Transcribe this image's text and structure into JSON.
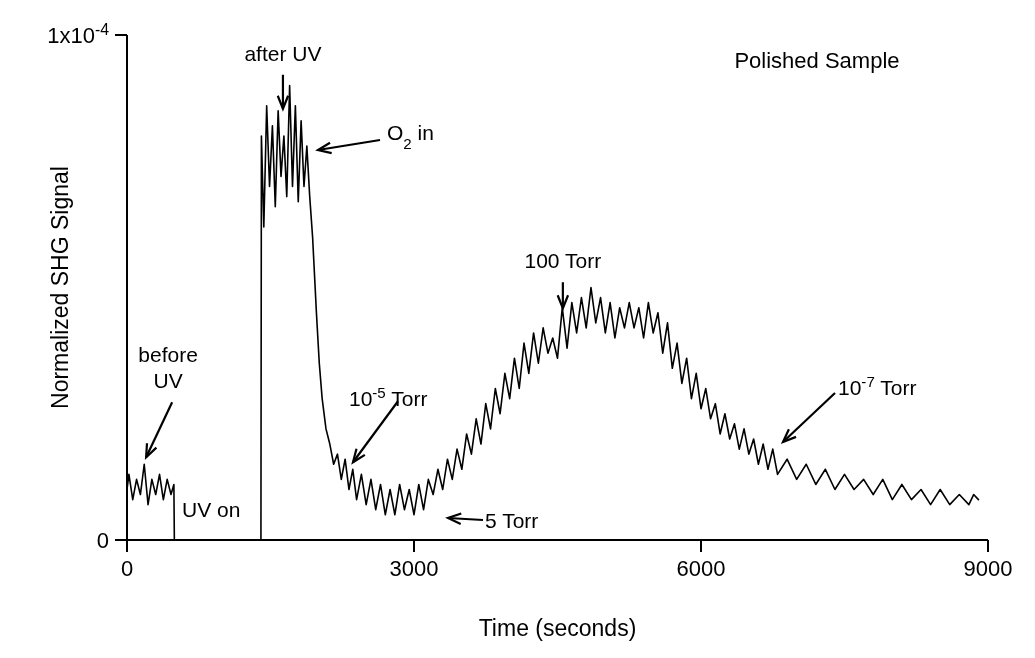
{
  "chart_data": {
    "type": "line",
    "title": "Polished Sample",
    "xlabel": "Time (seconds)",
    "ylabel": "Normalized SHG Signal",
    "xlim": [
      0,
      9000
    ],
    "xticks": [
      0,
      3000,
      6000,
      9000
    ],
    "ylim": [
      0,
      0.0001
    ],
    "yticks": [
      0,
      {
        "value": 0.0001,
        "label": "1x10$^{-4}$"
      }
    ],
    "grid": false,
    "legend": false,
    "marker": "none",
    "line_style": "solid",
    "annotations": [
      {
        "text": "before UV",
        "x": 200,
        "y": 1.6e-05
      },
      "UV on",
      {
        "text": "after UV",
        "x": 1630,
        "y": 8.5e-05
      },
      "O$_{2}$ in",
      {
        "text": "10$^{-5}$ Torr",
        "x": 2362,
        "y": 1.5e-05
      },
      "5 Torr",
      {
        "text": "100 Torr",
        "x": 4556,
        "y": 4.55e-05
      },
      "10$^{-7}$ Torr"
    ],
    "series": [
      {
        "color": "#000000",
        "x": [
          0,
          20,
          60,
          100,
          140,
          180,
          220,
          260,
          300,
          340,
          380,
          420,
          460,
          490,
          495,
          1400,
          1405,
          1430,
          1460,
          1490,
          1520,
          1550,
          1580,
          1610,
          1640,
          1670,
          1700,
          1730,
          1760,
          1790,
          1820,
          1850,
          1880,
          1910,
          1940,
          1980,
          2010,
          2040,
          2080,
          2120,
          2160,
          2200,
          2240,
          2280,
          2320,
          2360,
          2400,
          2450,
          2500,
          2550,
          2600,
          2650,
          2700,
          2750,
          2800,
          2850,
          2900,
          2950,
          3000,
          3050,
          3100,
          3150,
          3200,
          3250,
          3300,
          3350,
          3400,
          3450,
          3500,
          3550,
          3600,
          3650,
          3700,
          3750,
          3800,
          3850,
          3900,
          3950,
          4000,
          4050,
          4100,
          4150,
          4200,
          4250,
          4300,
          4350,
          4400,
          4450,
          4500,
          4550,
          4600,
          4650,
          4700,
          4750,
          4800,
          4850,
          4900,
          4950,
          5000,
          5050,
          5100,
          5150,
          5200,
          5250,
          5300,
          5350,
          5400,
          5450,
          5500,
          5550,
          5600,
          5650,
          5700,
          5750,
          5800,
          5850,
          5900,
          5950,
          6000,
          6050,
          6100,
          6150,
          6200,
          6250,
          6300,
          6350,
          6400,
          6450,
          6500,
          6550,
          6600,
          6650,
          6700,
          6750,
          6800,
          6900,
          7000,
          7100,
          7200,
          7300,
          7400,
          7500,
          7600,
          7700,
          7800,
          7900,
          8000,
          8100,
          8200,
          8300,
          8400,
          8500,
          8600,
          8700,
          8800,
          8850,
          8900
        ],
        "values": [
          1e-05,
          1.3e-05,
          8e-06,
          1.2e-05,
          9e-06,
          1.5e-05,
          7e-06,
          1.2e-05,
          9e-06,
          1.3e-05,
          8e-06,
          1.2e-05,
          9e-06,
          1.1e-05,
          0,
          0,
          8e-05,
          6.2e-05,
          8.6e-05,
          7e-05,
          8.2e-05,
          6.6e-05,
          8.5e-05,
          7.2e-05,
          8e-05,
          6.8e-05,
          9e-05,
          7e-05,
          8.6e-05,
          6.7e-05,
          8.3e-05,
          7e-05,
          7.8e-05,
          6.8e-05,
          6e-05,
          4.5e-05,
          3.5e-05,
          2.8e-05,
          2.2e-05,
          1.9e-05,
          1.5e-05,
          1.7e-05,
          1.2e-05,
          1.6e-05,
          1e-05,
          1.4e-05,
          8e-06,
          1.3e-05,
          7e-06,
          1.2e-05,
          6e-06,
          1.1e-05,
          5e-06,
          1e-05,
          5e-06,
          1.1e-05,
          6e-06,
          1e-05,
          5e-06,
          1.1e-05,
          6e-06,
          1.2e-05,
          9e-06,
          1.4e-05,
          1e-05,
          1.6e-05,
          1.2e-05,
          1.8e-05,
          1.4e-05,
          2.1e-05,
          1.7e-05,
          2.4e-05,
          1.9e-05,
          2.7e-05,
          2.2e-05,
          3e-05,
          2.5e-05,
          3.3e-05,
          2.8e-05,
          3.6e-05,
          3e-05,
          3.9e-05,
          3.3e-05,
          4.1e-05,
          3.5e-05,
          4.2e-05,
          3.7e-05,
          4e-05,
          3.6e-05,
          4.6e-05,
          3.8e-05,
          4.7e-05,
          4.1e-05,
          4.8e-05,
          4.2e-05,
          5e-05,
          4.3e-05,
          4.8e-05,
          4.1e-05,
          4.7e-05,
          4e-05,
          4.6e-05,
          4.2e-05,
          4.7e-05,
          4.2e-05,
          4.6e-05,
          4e-05,
          4.7e-05,
          4.1e-05,
          4.5e-05,
          3.7e-05,
          4.3e-05,
          3.4e-05,
          3.9e-05,
          3.1e-05,
          3.6e-05,
          2.8e-05,
          3.3e-05,
          2.6e-05,
          3e-05,
          2.4e-05,
          2.7e-05,
          2.1e-05,
          2.5e-05,
          2e-05,
          2.3e-05,
          1.8e-05,
          2.2e-05,
          1.7e-05,
          2e-05,
          1.5e-05,
          1.9e-05,
          1.4e-05,
          1.8e-05,
          1.3e-05,
          1.6e-05,
          1.2e-05,
          1.5e-05,
          1.1e-05,
          1.4e-05,
          1e-05,
          1.3e-05,
          1e-05,
          1.2e-05,
          9e-06,
          1.2e-05,
          8e-06,
          1.1e-05,
          8e-06,
          1e-05,
          7e-06,
          1e-05,
          7e-06,
          9e-06,
          7e-06,
          9e-06,
          8e-06
        ]
      }
    ]
  }
}
